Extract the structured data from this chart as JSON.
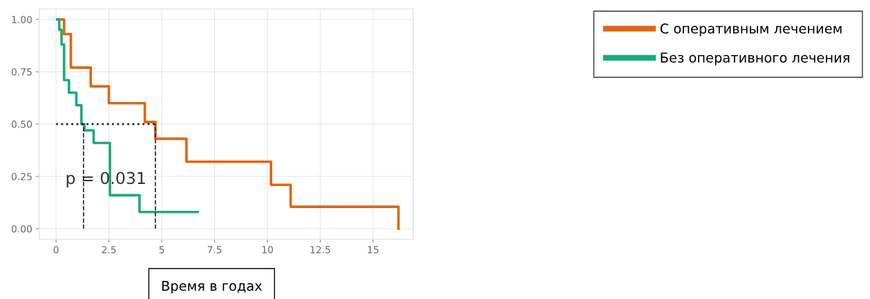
{
  "chart_data": {
    "type": "step",
    "xlabel": "Время в годах",
    "series": [
      {
        "name": "С оперативным лечением",
        "color": "#e0650f",
        "x": [
          0.09,
          0.38,
          0.7,
          1.64,
          2.5,
          4.2,
          4.7,
          6.17,
          10.17,
          11.1,
          16.2
        ],
        "values": [
          1.0,
          0.93,
          0.77,
          0.68,
          0.6,
          0.51,
          0.43,
          0.32,
          0.21,
          0.105,
          0.0
        ]
      },
      {
        "name": "Без оперативного лечения",
        "color": "#1daa7a",
        "x": [
          0.05,
          0.15,
          0.26,
          0.38,
          0.61,
          0.96,
          1.2,
          1.34,
          1.78,
          2.55,
          3.95,
          6.7
        ],
        "values": [
          1.0,
          0.95,
          0.88,
          0.71,
          0.65,
          0.59,
          0.5,
          0.47,
          0.41,
          0.16,
          0.08,
          0.08
        ]
      }
    ],
    "xlim": [
      -0.8,
      16.9
    ],
    "ylim": [
      -0.05,
      1.05
    ],
    "xticks": [
      0,
      2.5,
      5,
      7.5,
      10,
      12.5,
      15
    ],
    "yticks": [
      {
        "value": 0,
        "label": "0.00"
      },
      {
        "value": 0.25,
        "label": "0.25"
      },
      {
        "value": 0.5,
        "label": "0.50"
      },
      {
        "value": 0.75,
        "label": "0.75"
      },
      {
        "value": 1,
        "label": "1.00"
      }
    ],
    "ref_lines": [
      {
        "axis": "y",
        "value": 0.5,
        "line_style": "dotted",
        "color": "#222222"
      },
      {
        "axis": "x",
        "value": 1.3,
        "line_style": "dashed",
        "color": "#222222"
      },
      {
        "axis": "x",
        "value": 4.7,
        "line_style": "dashed",
        "color": "#222222"
      }
    ],
    "annotations": [
      "p = 0.031"
    ],
    "grid": true,
    "legend": "top right",
    "marker": "none",
    "line_style": "solid"
  }
}
